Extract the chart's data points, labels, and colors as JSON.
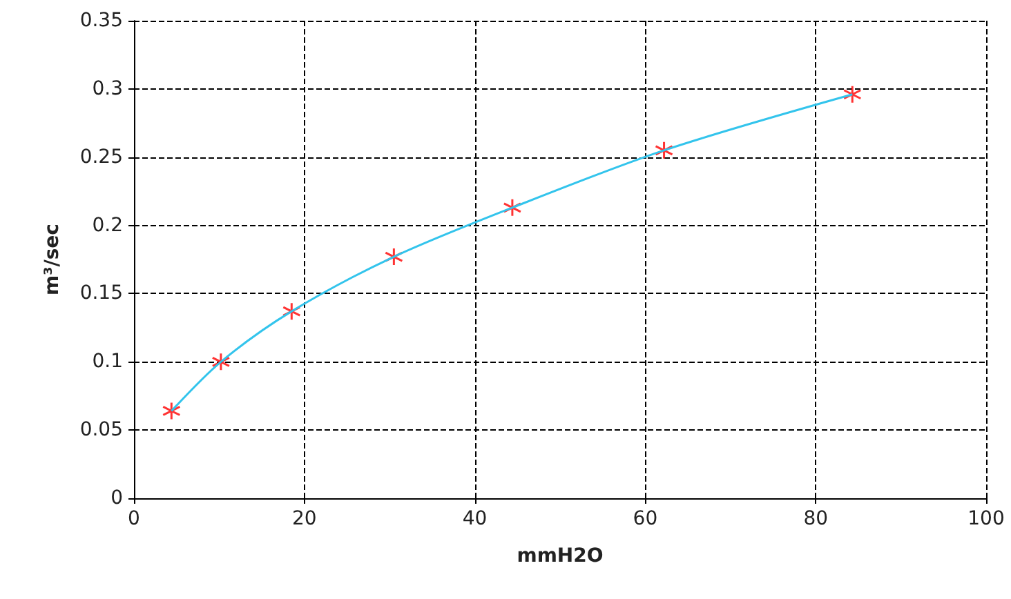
{
  "chart_data": {
    "type": "scatter",
    "xlabel": "mmH2O",
    "ylabel": "m³/sec",
    "series": [
      {
        "type": "line",
        "color": "#33c4ec",
        "x": [
          4.4,
          10.2,
          18.5,
          30.5,
          44.4,
          62.2,
          84.3
        ],
        "values": [
          0.064,
          0.1,
          0.137,
          0.177,
          0.213,
          0.255,
          0.296
        ],
        "marker": "none"
      },
      {
        "color": "#ff0000",
        "x": [
          4.4,
          10.2,
          18.5,
          30.5,
          44.4,
          62.2,
          84.3
        ],
        "values": [
          0.064,
          0.1,
          0.137,
          0.177,
          0.213,
          0.255,
          0.296
        ],
        "marker": "cross"
      }
    ],
    "xlim": [
      0,
      100
    ],
    "xticks": [
      0,
      20,
      40,
      60,
      80,
      100
    ],
    "ylim": [
      0,
      0.35
    ],
    "yticks": [
      0,
      0.05,
      0.1,
      0.15,
      0.2,
      0.25,
      0.3,
      0.35
    ],
    "grid": true,
    "line_style": "solid"
  }
}
